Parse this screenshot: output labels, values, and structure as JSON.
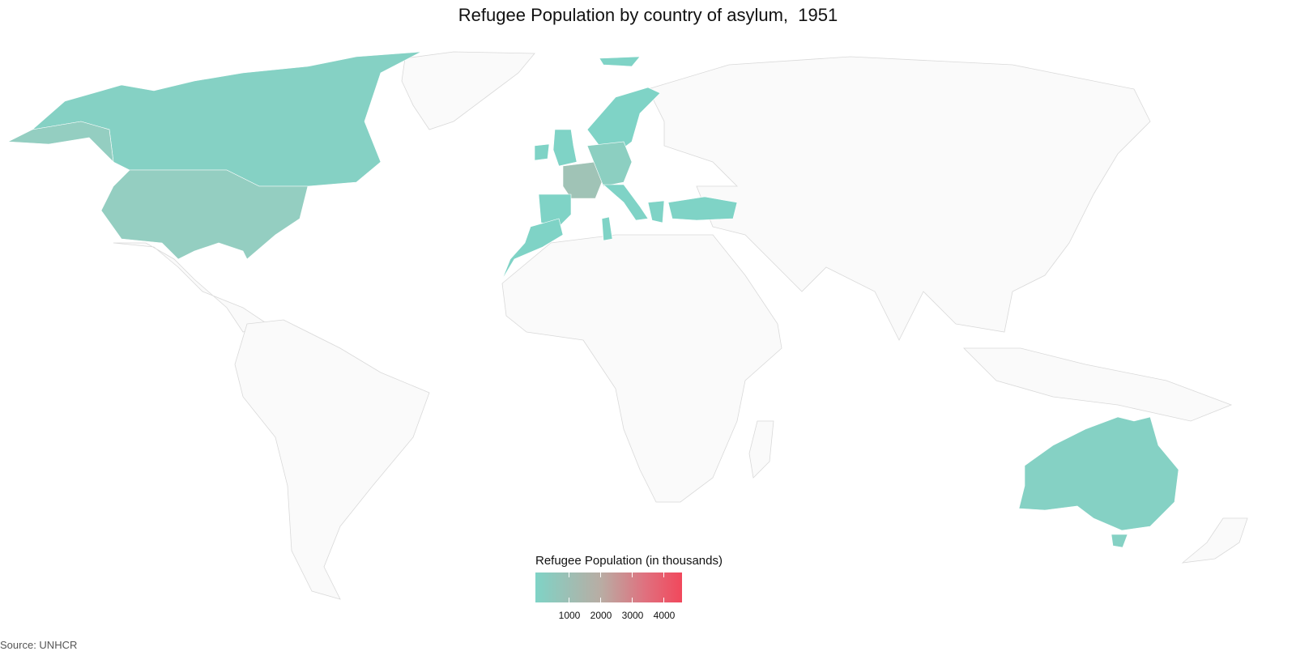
{
  "title": "Refugee Population by country of asylum,  1951",
  "source": "Source: UNHCR",
  "legend": {
    "title": "Refugee Population (in thousands)",
    "ticks": [
      "1000",
      "2000",
      "3000",
      "4000"
    ],
    "range": [
      0,
      4600
    ],
    "colors": {
      "low": "#7fd3c6",
      "mid": "#b9aca3",
      "high": "#f1485c"
    }
  },
  "map": {
    "base_color": "#fafafa",
    "border_color": "#d9d9d9",
    "highlighted_countries": [
      "Canada",
      "United States",
      "France",
      "Germany",
      "United Kingdom",
      "Ireland",
      "Norway",
      "Sweden",
      "Denmark",
      "Belgium",
      "Netherlands",
      "Austria",
      "Switzerland",
      "Italy",
      "Spain",
      "Portugal",
      "Greece",
      "Turkey",
      "Morocco",
      "Tunisia",
      "Australia"
    ]
  }
}
